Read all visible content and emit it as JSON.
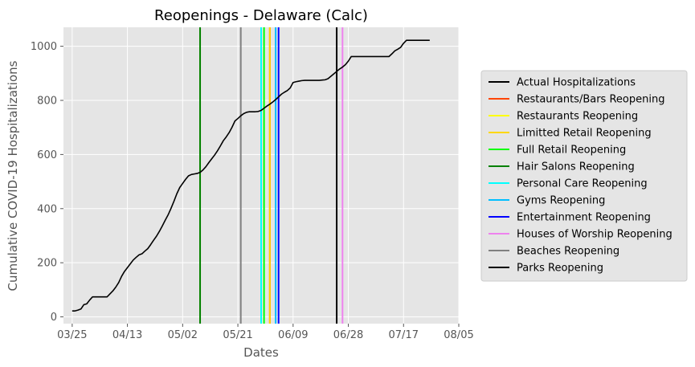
{
  "chart_data": {
    "type": "line",
    "title": "Reopenings - Delaware (Calc)",
    "xlabel": "Dates",
    "ylabel": "Cumulative COVID-19 Hospitalizations",
    "x_ticks": [
      "03/25",
      "04/13",
      "05/02",
      "05/21",
      "06/09",
      "06/28",
      "07/17",
      "08/05"
    ],
    "y_ticks": [
      "0",
      "200",
      "400",
      "600",
      "800",
      "1000"
    ],
    "ylim": [
      -25,
      1070
    ],
    "xlim": [
      "2020-03-22",
      "2020-08-05"
    ],
    "grid": true,
    "legend_location": "center-right-outside",
    "background": "#e5e5e5",
    "series": [
      {
        "name": "Actual Hospitalizations",
        "color": "#000000",
        "points": [
          [
            "2020-03-25",
            22
          ],
          [
            "2020-03-26",
            22
          ],
          [
            "2020-03-27",
            25
          ],
          [
            "2020-03-28",
            29
          ],
          [
            "2020-03-29",
            45
          ],
          [
            "2020-03-30",
            48
          ],
          [
            "2020-03-31",
            62
          ],
          [
            "2020-04-01",
            74
          ],
          [
            "2020-04-02",
            74
          ],
          [
            "2020-04-03",
            74
          ],
          [
            "2020-04-04",
            74
          ],
          [
            "2020-04-05",
            74
          ],
          [
            "2020-04-06",
            74
          ],
          [
            "2020-04-07",
            85
          ],
          [
            "2020-04-08",
            96
          ],
          [
            "2020-04-09",
            110
          ],
          [
            "2020-04-10",
            127
          ],
          [
            "2020-04-11",
            150
          ],
          [
            "2020-04-12",
            168
          ],
          [
            "2020-04-13",
            182
          ],
          [
            "2020-04-14",
            196
          ],
          [
            "2020-04-15",
            210
          ],
          [
            "2020-04-16",
            220
          ],
          [
            "2020-04-17",
            229
          ],
          [
            "2020-04-18",
            233
          ],
          [
            "2020-04-19",
            243
          ],
          [
            "2020-04-20",
            252
          ],
          [
            "2020-04-21",
            267
          ],
          [
            "2020-04-22",
            283
          ],
          [
            "2020-04-23",
            298
          ],
          [
            "2020-04-24",
            316
          ],
          [
            "2020-04-25",
            336
          ],
          [
            "2020-04-26",
            357
          ],
          [
            "2020-04-27",
            377
          ],
          [
            "2020-04-28",
            401
          ],
          [
            "2020-04-29",
            427
          ],
          [
            "2020-04-30",
            455
          ],
          [
            "2020-05-01",
            478
          ],
          [
            "2020-05-02",
            493
          ],
          [
            "2020-05-03",
            508
          ],
          [
            "2020-05-04",
            521
          ],
          [
            "2020-05-05",
            526
          ],
          [
            "2020-05-06",
            528
          ],
          [
            "2020-05-07",
            530
          ],
          [
            "2020-05-08",
            534
          ],
          [
            "2020-05-09",
            543
          ],
          [
            "2020-05-10",
            555
          ],
          [
            "2020-05-11",
            570
          ],
          [
            "2020-05-12",
            584
          ],
          [
            "2020-05-13",
            598
          ],
          [
            "2020-05-14",
            614
          ],
          [
            "2020-05-15",
            632
          ],
          [
            "2020-05-16",
            651
          ],
          [
            "2020-05-17",
            665
          ],
          [
            "2020-05-18",
            681
          ],
          [
            "2020-05-19",
            701
          ],
          [
            "2020-05-20",
            724
          ],
          [
            "2020-05-21",
            733
          ],
          [
            "2020-05-22",
            743
          ],
          [
            "2020-05-23",
            751
          ],
          [
            "2020-05-24",
            756
          ],
          [
            "2020-05-25",
            758
          ],
          [
            "2020-05-26",
            758
          ],
          [
            "2020-05-27",
            758
          ],
          [
            "2020-05-28",
            759
          ],
          [
            "2020-05-29",
            763
          ],
          [
            "2020-05-30",
            771
          ],
          [
            "2020-05-31",
            779
          ],
          [
            "2020-06-01",
            786
          ],
          [
            "2020-06-02",
            794
          ],
          [
            "2020-06-03",
            803
          ],
          [
            "2020-06-04",
            813
          ],
          [
            "2020-06-05",
            823
          ],
          [
            "2020-06-06",
            830
          ],
          [
            "2020-06-07",
            836
          ],
          [
            "2020-06-08",
            846
          ],
          [
            "2020-06-09",
            866
          ],
          [
            "2020-06-10",
            869
          ],
          [
            "2020-06-11",
            871
          ],
          [
            "2020-06-12",
            873
          ],
          [
            "2020-06-13",
            874
          ],
          [
            "2020-06-14",
            874
          ],
          [
            "2020-06-15",
            874
          ],
          [
            "2020-06-16",
            874
          ],
          [
            "2020-06-17",
            874
          ],
          [
            "2020-06-18",
            874
          ],
          [
            "2020-06-19",
            875
          ],
          [
            "2020-06-20",
            876
          ],
          [
            "2020-06-21",
            880
          ],
          [
            "2020-06-22",
            889
          ],
          [
            "2020-06-23",
            898
          ],
          [
            "2020-06-24",
            907
          ],
          [
            "2020-06-25",
            916
          ],
          [
            "2020-06-26",
            923
          ],
          [
            "2020-06-27",
            932
          ],
          [
            "2020-06-28",
            945
          ],
          [
            "2020-06-29",
            962
          ],
          [
            "2020-06-30",
            962
          ],
          [
            "2020-07-01",
            962
          ],
          [
            "2020-07-02",
            962
          ],
          [
            "2020-07-03",
            962
          ],
          [
            "2020-07-04",
            962
          ],
          [
            "2020-07-05",
            962
          ],
          [
            "2020-07-06",
            962
          ],
          [
            "2020-07-07",
            962
          ],
          [
            "2020-07-08",
            962
          ],
          [
            "2020-07-09",
            962
          ],
          [
            "2020-07-10",
            962
          ],
          [
            "2020-07-11",
            962
          ],
          [
            "2020-07-12",
            962
          ],
          [
            "2020-07-13",
            972
          ],
          [
            "2020-07-14",
            983
          ],
          [
            "2020-07-15",
            989
          ],
          [
            "2020-07-16",
            996
          ],
          [
            "2020-07-17",
            1011
          ],
          [
            "2020-07-18",
            1022
          ],
          [
            "2020-07-19",
            1022
          ],
          [
            "2020-07-20",
            1022
          ],
          [
            "2020-07-21",
            1022
          ],
          [
            "2020-07-22",
            1022
          ],
          [
            "2020-07-23",
            1022
          ],
          [
            "2020-07-24",
            1022
          ],
          [
            "2020-07-25",
            1022
          ],
          [
            "2020-07-26",
            1022
          ]
        ]
      }
    ],
    "reopenings": [
      {
        "name": "Restaurants/Bars Reopening",
        "color": "#ff4500",
        "date": "2020-06-01"
      },
      {
        "name": "Restaurants Reopening",
        "color": "#ffff00",
        "date": "2020-05-08"
      },
      {
        "name": "Limitted Retail Reopening",
        "color": "#ffd700",
        "date": "2020-06-01"
      },
      {
        "name": "Full Retail Reopening",
        "color": "#00ff00",
        "date": "2020-05-30"
      },
      {
        "name": "Hair Salons Reopening",
        "color": "#008000",
        "date": "2020-05-08"
      },
      {
        "name": "Personal Care Reopening",
        "color": "#00ffff",
        "date": "2020-05-29"
      },
      {
        "name": "Gyms Reopening",
        "color": "#00bfff",
        "date": "2020-06-03"
      },
      {
        "name": "Entertainment Reopening",
        "color": "#0000ff",
        "date": "2020-06-04"
      },
      {
        "name": "Houses of Worship Reopening",
        "color": "#ee82ee",
        "date": "2020-06-26"
      },
      {
        "name": "Beaches Reopening",
        "color": "#808080",
        "date": "2020-05-22"
      },
      {
        "name": "Parks Reopening",
        "color": "#000000",
        "date": "2020-06-24"
      }
    ]
  }
}
